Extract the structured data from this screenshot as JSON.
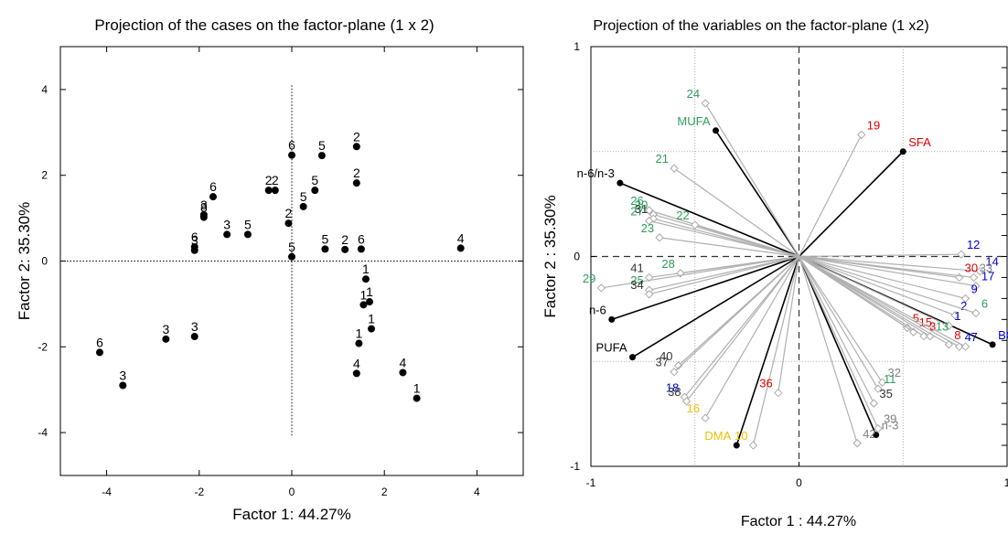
{
  "chart_data": [
    {
      "type": "scatter",
      "title": "Projection of the cases on the factor-plane (1 x 2)",
      "xlabel": "Factor 1: 44.27%",
      "ylabel": "Factor 2: 35.30%",
      "xlim": [
        -5,
        5
      ],
      "ylim": [
        -5,
        5
      ],
      "xticks": [
        -4,
        -2,
        0,
        2,
        4
      ],
      "yticks": [
        -4,
        -2,
        0,
        2,
        4
      ],
      "grid": false,
      "reference_lines": "dotted lines at x=0 and y=0",
      "point_color": "#000000",
      "points": [
        {
          "label": "6",
          "x": -4.15,
          "y": -2.13
        },
        {
          "label": "3",
          "x": -3.65,
          "y": -2.9
        },
        {
          "label": "3",
          "x": -2.72,
          "y": -1.82
        },
        {
          "label": "3",
          "x": -2.1,
          "y": -1.76
        },
        {
          "label": "3",
          "x": -2.1,
          "y": 0.25
        },
        {
          "label": "6",
          "x": -2.1,
          "y": 0.33
        },
        {
          "label": "3",
          "x": -1.9,
          "y": 1.08
        },
        {
          "label": "8",
          "x": -1.9,
          "y": 1.02
        },
        {
          "label": "6",
          "x": -1.7,
          "y": 1.5
        },
        {
          "label": "3",
          "x": -1.4,
          "y": 0.62
        },
        {
          "label": "5",
          "x": -0.95,
          "y": 0.62
        },
        {
          "label": "2",
          "x": -0.5,
          "y": 1.65
        },
        {
          "label": "2",
          "x": -0.36,
          "y": 1.65
        },
        {
          "label": "2",
          "x": -0.07,
          "y": 0.88
        },
        {
          "label": "6",
          "x": 0.0,
          "y": 2.47
        },
        {
          "label": "5",
          "x": 0.0,
          "y": 0.1
        },
        {
          "label": "5",
          "x": 0.65,
          "y": 2.46
        },
        {
          "label": "5",
          "x": 0.25,
          "y": 1.27
        },
        {
          "label": "5",
          "x": 0.5,
          "y": 1.65
        },
        {
          "label": "5",
          "x": 0.72,
          "y": 0.28
        },
        {
          "label": "2",
          "x": 1.4,
          "y": 2.67
        },
        {
          "label": "2",
          "x": 1.4,
          "y": 1.82
        },
        {
          "label": "2",
          "x": 1.15,
          "y": 0.27
        },
        {
          "label": "6",
          "x": 1.5,
          "y": 0.28
        },
        {
          "label": "1",
          "x": 1.6,
          "y": -0.42
        },
        {
          "label": "1",
          "x": 1.55,
          "y": -1.02
        },
        {
          "label": "1",
          "x": 1.68,
          "y": -0.95
        },
        {
          "label": "1",
          "x": 1.72,
          "y": -1.58
        },
        {
          "label": "1",
          "x": 1.45,
          "y": -1.92
        },
        {
          "label": "4",
          "x": 1.4,
          "y": -2.62
        },
        {
          "label": "4",
          "x": 2.4,
          "y": -2.6
        },
        {
          "label": "1",
          "x": 2.7,
          "y": -3.2
        },
        {
          "label": "4",
          "x": 3.65,
          "y": 0.3
        }
      ]
    },
    {
      "type": "scatter",
      "title": "Projection of the variables on the factor-plane (1 x2)",
      "xlabel": "Factor 1 : 44.27%",
      "ylabel": "Factor 2 : 35.30%",
      "xlim": [
        -1,
        1
      ],
      "ylim": [
        -1,
        1
      ],
      "xticks": [
        -1,
        0,
        1
      ],
      "yticks": [
        -1,
        0,
        1
      ],
      "grid": "dotted gridlines at ±0.5",
      "reference_lines": "dashed lines at x=0 and y=0",
      "series": [
        {
          "name": "",
          "color": "#000000",
          "marker": "filled-circle",
          "line_color": "#000000",
          "points": [
            {
              "label": "MUFA",
              "x": -0.4,
              "y": 0.6,
              "label_color": "#2e9e5b"
            },
            {
              "label": "SFA",
              "x": 0.5,
              "y": 0.5,
              "label_color": "#e00000"
            },
            {
              "label": "n-6/n-3",
              "x": -0.86,
              "y": 0.35,
              "label_color": "#000000"
            },
            {
              "label": "n-6",
              "x": -0.9,
              "y": -0.3,
              "label_color": "#000000"
            },
            {
              "label": "PUFA",
              "x": -0.8,
              "y": -0.48,
              "label_color": "#000000"
            },
            {
              "label": "DMA",
              "x": -0.3,
              "y": -0.9,
              "label_color": "#f0c000"
            },
            {
              "label": "n-3",
              "x": 0.37,
              "y": -0.85,
              "label_color": "#808080"
            },
            {
              "label": "BCFA",
              "x": 0.93,
              "y": -0.42,
              "label_color": "#0000d0"
            }
          ]
        },
        {
          "name": "",
          "color": "#aaaaaa",
          "marker": "open-diamond",
          "line_color": "#b0b0b0",
          "points": [
            {
              "label": "24",
              "x": -0.45,
              "y": 0.73,
              "label_color": "#2e9e5b"
            },
            {
              "label": "19",
              "x": 0.3,
              "y": 0.58,
              "label_color": "#e00000"
            },
            {
              "label": "21",
              "x": -0.6,
              "y": 0.42,
              "label_color": "#2e9e5b"
            },
            {
              "label": "26",
              "x": -0.72,
              "y": 0.22,
              "label_color": "#2e9e5b"
            },
            {
              "label": "20",
              "x": -0.7,
              "y": 0.2,
              "label_color": "#2e9e5b"
            },
            {
              "label": "22",
              "x": -0.5,
              "y": 0.15,
              "label_color": "#2e9e5b"
            },
            {
              "label": "31",
              "x": -0.7,
              "y": 0.18,
              "label_color": "#333333"
            },
            {
              "label": "27",
              "x": -0.72,
              "y": 0.17,
              "label_color": "#2e9e5b"
            },
            {
              "label": "23",
              "x": -0.67,
              "y": 0.09,
              "label_color": "#2e9e5b"
            },
            {
              "label": "41",
              "x": -0.72,
              "y": -0.1,
              "label_color": "#333333"
            },
            {
              "label": "28",
              "x": -0.57,
              "y": -0.08,
              "label_color": "#2e9e5b"
            },
            {
              "label": "29",
              "x": -0.95,
              "y": -0.15,
              "label_color": "#2e9e5b"
            },
            {
              "label": "25",
              "x": -0.72,
              "y": -0.16,
              "label_color": "#2e9e5b"
            },
            {
              "label": "34",
              "x": -0.72,
              "y": -0.18,
              "label_color": "#333333"
            },
            {
              "label": "40",
              "x": -0.58,
              "y": -0.52,
              "label_color": "#333333"
            },
            {
              "label": "37",
              "x": -0.6,
              "y": -0.55,
              "label_color": "#333333"
            },
            {
              "label": "18",
              "x": -0.55,
              "y": -0.67,
              "label_color": "#0000d0"
            },
            {
              "label": "38",
              "x": -0.54,
              "y": -0.69,
              "label_color": "#333333"
            },
            {
              "label": "16",
              "x": -0.45,
              "y": -0.77,
              "label_color": "#f0c000"
            },
            {
              "label": "10",
              "x": -0.22,
              "y": -0.9,
              "label_color": "#f0c000"
            },
            {
              "label": "36",
              "x": -0.1,
              "y": -0.65,
              "label_color": "#e00000"
            },
            {
              "label": "42",
              "x": 0.28,
              "y": -0.89,
              "label_color": "#808080"
            },
            {
              "label": "32",
              "x": 0.4,
              "y": -0.6,
              "label_color": "#808080"
            },
            {
              "label": "11",
              "x": 0.38,
              "y": -0.63,
              "label_color": "#2e9e5b"
            },
            {
              "label": "35",
              "x": 0.36,
              "y": -0.7,
              "label_color": "#333333"
            },
            {
              "label": "39",
              "x": 0.38,
              "y": -0.82,
              "label_color": "#808080"
            },
            {
              "label": "12",
              "x": 0.78,
              "y": 0.01,
              "label_color": "#0000d0"
            },
            {
              "label": "14",
              "x": 0.87,
              "y": -0.07,
              "label_color": "#0000d0"
            },
            {
              "label": "30",
              "x": 0.77,
              "y": -0.1,
              "label_color": "#e00000"
            },
            {
              "label": "33",
              "x": 0.84,
              "y": -0.1,
              "label_color": "#808080"
            },
            {
              "label": "17",
              "x": 0.85,
              "y": -0.14,
              "label_color": "#0000d0"
            },
            {
              "label": "9",
              "x": 0.8,
              "y": -0.2,
              "label_color": "#0000d0"
            },
            {
              "label": "2",
              "x": 0.75,
              "y": -0.28,
              "label_color": "#0000d0"
            },
            {
              "label": "6",
              "x": 0.85,
              "y": -0.27,
              "label_color": "#2e9e5b"
            },
            {
              "label": "1",
              "x": 0.72,
              "y": -0.33,
              "label_color": "#0000d0"
            },
            {
              "label": "5",
              "x": 0.52,
              "y": -0.34,
              "label_color": "#e00000"
            },
            {
              "label": "15",
              "x": 0.55,
              "y": -0.36,
              "label_color": "#e00000"
            },
            {
              "label": "3",
              "x": 0.6,
              "y": -0.38,
              "label_color": "#e00000"
            },
            {
              "label": "13",
              "x": 0.63,
              "y": -0.38,
              "label_color": "#2e9e5b"
            },
            {
              "label": "8",
              "x": 0.72,
              "y": -0.42,
              "label_color": "#e00000"
            },
            {
              "label": "4",
              "x": 0.77,
              "y": -0.43,
              "label_color": "#0000d0"
            },
            {
              "label": "7",
              "x": 0.8,
              "y": -0.43,
              "label_color": "#0000d0"
            }
          ]
        }
      ]
    }
  ]
}
